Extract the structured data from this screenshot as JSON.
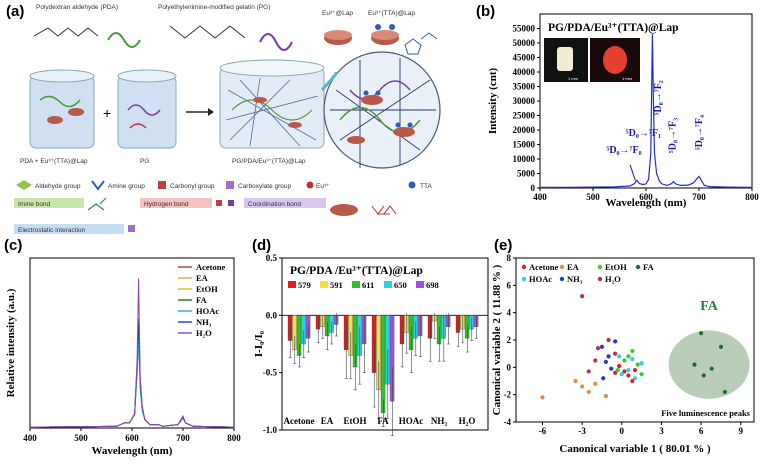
{
  "panel_a": {
    "label": "(a)",
    "headers": [
      "Polydextran aldehyde (PDA)",
      "Polyethylenimine-modified gelatin (PG)",
      "Eu³⁺@Lap",
      "Eu³⁺(TTA)@Lap"
    ],
    "beaker_labels": [
      "PDA + Eu³⁺(TTA)@Lap",
      "PG",
      "PG/PDA/Eu³⁺(TTA)@Lap"
    ],
    "plus": "+",
    "legend_items": [
      "Aldehyde group",
      "Amine group",
      "Carbonyl group",
      "Carboxylate group",
      "Eu³⁺",
      "TTA"
    ],
    "bond_labels": [
      "Imine bond",
      "Hydrogen bond",
      "Coordination bond",
      "Electrostatic interaction"
    ],
    "colors": {
      "water": "#cfe0f2",
      "gel": "#e3ecf6",
      "imine": "#c8e6a8",
      "hydrogen": "#f5c2c2",
      "coordination": "#d8c6ee",
      "electro": "#c6dcf2"
    }
  },
  "panel_b": {
    "label": "(b)",
    "chart_data": {
      "type": "line",
      "title": "PG/PDA/Eu³⁺(TTA)@Lap",
      "xlabel": "Wavelength (nm)",
      "ylabel": "Intensity (cnt)",
      "xlim": [
        400,
        800
      ],
      "ylim": [
        0,
        60000
      ],
      "xticks": [
        "400",
        "500",
        "600",
        "700",
        "800"
      ],
      "yticks": [
        "0",
        "5000",
        "10000",
        "15000",
        "20000",
        "25000",
        "30000",
        "35000",
        "40000",
        "45000",
        "50000",
        "55000"
      ],
      "x": [
        400,
        450,
        500,
        540,
        570,
        578,
        583,
        588,
        595,
        600,
        605,
        609,
        612,
        614,
        616,
        620,
        625,
        630,
        640,
        648,
        652,
        656,
        665,
        680,
        690,
        695,
        700,
        705,
        710,
        720,
        750,
        800
      ],
      "y": [
        200,
        250,
        300,
        400,
        700,
        1500,
        2600,
        1500,
        1200,
        1400,
        3000,
        12000,
        53000,
        30000,
        12000,
        5000,
        2500,
        1400,
        900,
        1500,
        2200,
        1400,
        900,
        1000,
        1800,
        3000,
        4000,
        2500,
        900,
        500,
        300,
        200
      ],
      "line_color": "#1f2fc6",
      "annotations": [
        "⁵D₀→⁷F₀",
        "⁵D₀→⁷F₁",
        "⁵D₀→⁷F₂",
        "⁵D₀→⁷F₃",
        "⁵D₀→⁷F₄"
      ],
      "inset_scale_labels": [
        "1 mm",
        "1 mm"
      ]
    }
  },
  "panel_c": {
    "label": "(c)",
    "chart_data": {
      "type": "line",
      "xlabel": "Wavelength (nm)",
      "ylabel": "Relative intensity (a.u.)",
      "xlim": [
        400,
        800
      ],
      "xticks": [
        "400",
        "500",
        "600",
        "700",
        "800"
      ],
      "x": [
        400,
        520,
        570,
        585,
        595,
        605,
        610,
        613,
        616,
        620,
        625,
        635,
        648,
        652,
        660,
        690,
        700,
        705,
        720,
        800
      ],
      "series": [
        {
          "name": "Acetone",
          "color": "#c0392b",
          "values": [
            0.005,
            0.008,
            0.01,
            0.03,
            0.03,
            0.08,
            0.35,
            0.62,
            0.25,
            0.12,
            0.05,
            0.02,
            0.02,
            0.02,
            0.01,
            0.02,
            0.06,
            0.03,
            0.01,
            0.005
          ]
        },
        {
          "name": "EA",
          "color": "#e6a23c",
          "values": [
            0.005,
            0.008,
            0.01,
            0.03,
            0.03,
            0.08,
            0.33,
            0.58,
            0.24,
            0.11,
            0.05,
            0.02,
            0.02,
            0.02,
            0.01,
            0.02,
            0.06,
            0.03,
            0.01,
            0.005
          ]
        },
        {
          "name": "EtOH",
          "color": "#d4c800",
          "values": [
            0.005,
            0.008,
            0.01,
            0.03,
            0.03,
            0.09,
            0.38,
            0.55,
            0.28,
            0.12,
            0.05,
            0.02,
            0.02,
            0.02,
            0.01,
            0.02,
            0.07,
            0.03,
            0.01,
            0.005
          ]
        },
        {
          "name": "FA",
          "color": "#1e6b2c",
          "values": [
            0.005,
            0.008,
            0.01,
            0.03,
            0.03,
            0.08,
            0.34,
            0.6,
            0.26,
            0.11,
            0.05,
            0.02,
            0.02,
            0.02,
            0.01,
            0.02,
            0.06,
            0.03,
            0.01,
            0.005
          ]
        },
        {
          "name": "HOAc",
          "color": "#1ab2c8",
          "values": [
            0.005,
            0.008,
            0.01,
            0.03,
            0.03,
            0.08,
            0.32,
            0.52,
            0.23,
            0.1,
            0.05,
            0.02,
            0.02,
            0.02,
            0.01,
            0.02,
            0.06,
            0.03,
            0.01,
            0.005
          ]
        },
        {
          "name": "NH₃",
          "color": "#1f3fbf",
          "values": [
            0.005,
            0.008,
            0.01,
            0.03,
            0.03,
            0.08,
            0.36,
            0.64,
            0.27,
            0.12,
            0.05,
            0.02,
            0.02,
            0.02,
            0.01,
            0.02,
            0.06,
            0.03,
            0.01,
            0.005
          ]
        },
        {
          "name": "H₂O",
          "color": "#8e44ad",
          "values": [
            0.005,
            0.008,
            0.01,
            0.03,
            0.03,
            0.08,
            0.4,
            0.88,
            0.3,
            0.13,
            0.05,
            0.02,
            0.02,
            0.02,
            0.01,
            0.02,
            0.07,
            0.03,
            0.01,
            0.005
          ]
        }
      ]
    }
  },
  "panel_d": {
    "label": "(d)",
    "chart_data": {
      "type": "bar",
      "title": "PG/PDA /Eu³⁺(TTA)@Lap",
      "ylabel": "I-I₀/I₀",
      "ylim": [
        -1.0,
        0.5
      ],
      "yticks": [
        "0.5",
        "0.0",
        "-0.5",
        "-1.0"
      ],
      "categories": [
        "Acetone",
        "EA",
        "EtOH",
        "FA",
        "HOAc",
        "NH₃",
        "H₂O"
      ],
      "series": [
        {
          "name": "579",
          "color": "#e02020",
          "values": [
            -0.22,
            -0.12,
            -0.3,
            -0.5,
            -0.25,
            -0.2,
            -0.15
          ],
          "errors": [
            0.15,
            0.12,
            0.25,
            0.3,
            0.2,
            0.2,
            0.12
          ]
        },
        {
          "name": "591",
          "color": "#f0e040",
          "values": [
            -0.3,
            -0.1,
            -0.35,
            -0.65,
            -0.15,
            -0.05,
            -0.12
          ],
          "errors": [
            0.12,
            0.1,
            0.2,
            0.25,
            0.18,
            0.15,
            0.12
          ]
        },
        {
          "name": "611",
          "color": "#30c030",
          "values": [
            -0.35,
            -0.18,
            -0.45,
            -0.85,
            -0.3,
            -0.25,
            -0.2
          ],
          "errors": [
            0.1,
            0.12,
            0.2,
            0.12,
            0.2,
            0.15,
            0.12
          ]
        },
        {
          "name": "650",
          "color": "#30d0e0",
          "values": [
            -0.25,
            -0.15,
            -0.35,
            -0.6,
            -0.2,
            -0.2,
            -0.12
          ],
          "errors": [
            0.12,
            0.1,
            0.25,
            0.3,
            0.15,
            0.2,
            0.1
          ]
        },
        {
          "name": "698",
          "color": "#a050e0",
          "values": [
            -0.2,
            -0.08,
            -0.25,
            -0.75,
            -0.18,
            -0.1,
            -0.1
          ],
          "errors": [
            0.12,
            0.1,
            0.25,
            0.3,
            0.18,
            0.15,
            0.1
          ]
        }
      ]
    }
  },
  "panel_e": {
    "label": "(e)",
    "chart_data": {
      "type": "scatter",
      "xlabel": "Canonical variable 1 ( 80.01 % )",
      "ylabel": "Canonical variable 2 ( 11.88 % )",
      "xlim": [
        -8,
        10
      ],
      "ylim": [
        -4,
        8
      ],
      "xticks": [
        "-6",
        "-3",
        "0",
        "3",
        "6",
        "9"
      ],
      "yticks": [
        "-4",
        "-2",
        "0",
        "2",
        "4",
        "6",
        "8"
      ],
      "cluster_label": "FA",
      "footer": "Five luminescence peaks",
      "series": [
        {
          "name": "Acetone",
          "color": "#e02020",
          "points": [
            [
              0.2,
              -0.3
            ],
            [
              0.5,
              -0.6
            ],
            [
              -0.5,
              -0.4
            ],
            [
              1.0,
              -0.2
            ],
            [
              0.8,
              -1.0
            ],
            [
              -0.2,
              0.1
            ]
          ]
        },
        {
          "name": "EA",
          "color": "#e08a50",
          "points": [
            [
              -6.0,
              -2.2
            ],
            [
              -3.0,
              -1.4
            ],
            [
              -2.5,
              -1.8
            ],
            [
              -1.2,
              -2.1
            ],
            [
              -3.5,
              -1.0
            ],
            [
              -2.0,
              -1.2
            ]
          ]
        },
        {
          "name": "EtOH",
          "color": "#30d030",
          "points": [
            [
              0.5,
              0.8
            ],
            [
              1.2,
              0.2
            ],
            [
              -0.3,
              -0.2
            ],
            [
              1.5,
              -0.5
            ],
            [
              0.8,
              1.2
            ],
            [
              0.2,
              0.5
            ]
          ]
        },
        {
          "name": "FA",
          "color": "#1e6b2c",
          "points": [
            [
              5.5,
              0.2
            ],
            [
              6.2,
              -0.6
            ],
            [
              7.5,
              1.5
            ],
            [
              6.0,
              2.5
            ],
            [
              7.8,
              -1.8
            ],
            [
              6.8,
              -0.1
            ]
          ]
        },
        {
          "name": "HOAc",
          "color": "#30d0e0",
          "points": [
            [
              0.5,
              -0.2
            ],
            [
              1.5,
              0.3
            ],
            [
              -0.2,
              0.8
            ],
            [
              1.0,
              -0.8
            ],
            [
              0.0,
              -0.5
            ],
            [
              0.8,
              0.6
            ]
          ]
        },
        {
          "name": "NH₃",
          "color": "#1f3fbf",
          "points": [
            [
              -1.5,
              1.5
            ],
            [
              -1.0,
              0.8
            ],
            [
              -0.8,
              -0.1
            ],
            [
              -1.2,
              0.4
            ],
            [
              -0.5,
              1.9
            ],
            [
              -1.4,
              -0.8
            ]
          ]
        },
        {
          "name": "H₂O",
          "color": "#b03050",
          "points": [
            [
              -3.0,
              5.2
            ],
            [
              -2.0,
              0.5
            ],
            [
              -1.0,
              2.0
            ],
            [
              -2.5,
              -0.3
            ],
            [
              -1.8,
              1.4
            ],
            [
              -0.5,
              1.0
            ]
          ]
        }
      ]
    }
  }
}
